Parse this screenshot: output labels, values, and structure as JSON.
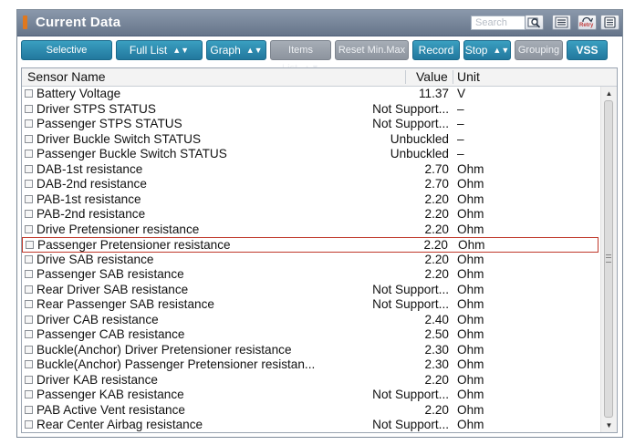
{
  "window": {
    "title": "Current Data"
  },
  "search": {
    "placeholder": "Search"
  },
  "title_buttons": {
    "retry_label": "Retry"
  },
  "toolbar": {
    "selective_display": "Selective Display",
    "full_list": "Full List",
    "graph": "Graph",
    "items_list": "Items List",
    "reset_min_max": "Reset Min.Max",
    "record": "Record",
    "stop": "Stop",
    "grouping": "Grouping",
    "vss": "VSS"
  },
  "table": {
    "headers": {
      "sensor_name": "Sensor Name",
      "value": "Value",
      "unit": "Unit"
    },
    "rows": [
      {
        "name": "Battery Voltage",
        "value": "11.37",
        "unit": "V"
      },
      {
        "name": "Driver STPS STATUS",
        "value": "Not Support...",
        "unit": "–"
      },
      {
        "name": "Passenger STPS STATUS",
        "value": "Not Support...",
        "unit": "–"
      },
      {
        "name": "Driver Buckle Switch STATUS",
        "value": "Unbuckled",
        "unit": "–"
      },
      {
        "name": "Passenger Buckle Switch STATUS",
        "value": "Unbuckled",
        "unit": "–"
      },
      {
        "name": "DAB-1st resistance",
        "value": "2.70",
        "unit": "Ohm"
      },
      {
        "name": "DAB-2nd resistance",
        "value": "2.70",
        "unit": "Ohm"
      },
      {
        "name": "PAB-1st resistance",
        "value": "2.20",
        "unit": "Ohm"
      },
      {
        "name": "PAB-2nd resistance",
        "value": "2.20",
        "unit": "Ohm"
      },
      {
        "name": "Drive Pretensioner resistance",
        "value": "2.20",
        "unit": "Ohm"
      },
      {
        "name": "Passenger Pretensioner resistance",
        "value": "2.20",
        "unit": "Ohm"
      },
      {
        "name": "Drive SAB resistance",
        "value": "2.20",
        "unit": "Ohm"
      },
      {
        "name": "Passenger SAB resistance",
        "value": "2.20",
        "unit": "Ohm"
      },
      {
        "name": "Rear Driver SAB resistance",
        "value": "Not Support...",
        "unit": "Ohm"
      },
      {
        "name": "Rear Passenger SAB resistance",
        "value": "Not Support...",
        "unit": "Ohm"
      },
      {
        "name": "Driver CAB resistance",
        "value": "2.40",
        "unit": "Ohm"
      },
      {
        "name": "Passenger CAB resistance",
        "value": "2.50",
        "unit": "Ohm"
      },
      {
        "name": "Buckle(Anchor) Driver Pretensioner resistance",
        "value": "2.30",
        "unit": "Ohm"
      },
      {
        "name": "Buckle(Anchor) Passenger Pretensioner resistan...",
        "value": "2.30",
        "unit": "Ohm"
      },
      {
        "name": "Driver KAB resistance",
        "value": "2.20",
        "unit": "Ohm"
      },
      {
        "name": "Passenger KAB resistance",
        "value": "Not Support...",
        "unit": "Ohm"
      },
      {
        "name": "PAB Active Vent resistance",
        "value": "2.20",
        "unit": "Ohm"
      },
      {
        "name": "Rear Center Airbag resistance",
        "value": "Not Support...",
        "unit": "Ohm"
      }
    ],
    "selected_row": "Passenger Pretensioner resistance"
  },
  "icons": {
    "title_marker": "orange-bar-icon",
    "search": "magnifier-icon",
    "list": "list-icon",
    "retry": "retry-icon",
    "save": "save-icon"
  },
  "colors": {
    "button": "#2a86ab",
    "button_disabled": "#9aa1aa",
    "titlebar": "#76859a",
    "selected_row_border": "#c0392b"
  }
}
